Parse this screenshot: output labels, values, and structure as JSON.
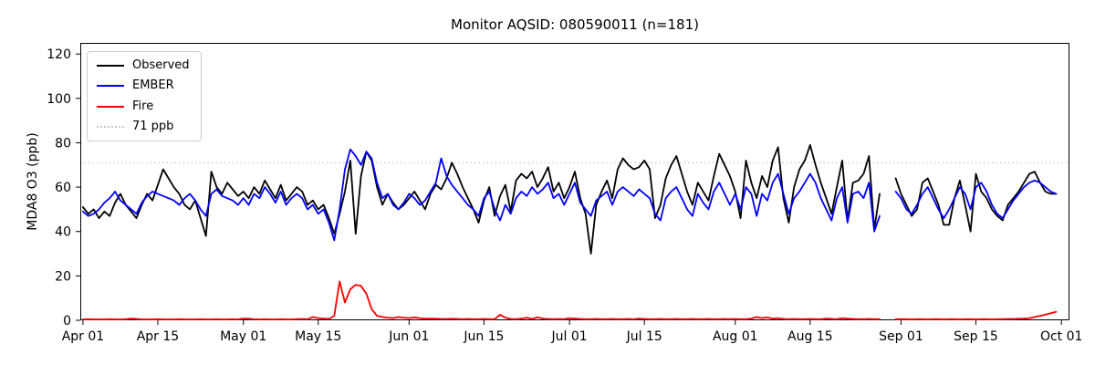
{
  "figure": {
    "title": "Monitor AQSID: 080590011 (n=181)"
  },
  "chart_data": {
    "type": "line",
    "title": "Monitor AQSID: 080590011 (n=181)",
    "xlabel": "",
    "ylabel": "MDA8 O3 (ppb)",
    "ylim": [
      0,
      125
    ],
    "yticks": [
      0,
      20,
      40,
      60,
      80,
      100,
      120
    ],
    "x_unit": "days since Apr 01",
    "x_range_days": [
      -0.5,
      184.5
    ],
    "x_tick_days": [
      0,
      14,
      30,
      44,
      61,
      75,
      91,
      105,
      122,
      136,
      153,
      167,
      183
    ],
    "x_tick_labels": [
      "Apr 01",
      "Apr 15",
      "May 01",
      "May 15",
      "Jun 01",
      "Jun 15",
      "Jul 01",
      "Jul 15",
      "Aug 01",
      "Aug 15",
      "Sep 01",
      "Sep 15",
      "Oct 01"
    ],
    "grid": false,
    "legend_position": "upper-left",
    "threshold": {
      "label": "71 ppb",
      "value": 71,
      "color": "#c8c8c8",
      "style": "dotted"
    },
    "legend": {
      "items": [
        {
          "label": "Observed",
          "color": "#000000",
          "style": "solid"
        },
        {
          "label": "EMBER",
          "color": "#0000ff",
          "style": "solid"
        },
        {
          "label": "Fire",
          "color": "#ff0000",
          "style": "solid"
        },
        {
          "label": "71 ppb",
          "color": "#c8c8c8",
          "style": "dotted"
        }
      ]
    },
    "series": [
      {
        "name": "Observed",
        "color": "#000000",
        "values": [
          51,
          48,
          50,
          46,
          49,
          47,
          53,
          57,
          52,
          49,
          46,
          52,
          57,
          54,
          61,
          68,
          64,
          60,
          57,
          52,
          50,
          54,
          46,
          38,
          67,
          60,
          57,
          62,
          59,
          56,
          58,
          55,
          60,
          57,
          63,
          59,
          55,
          61,
          54,
          57,
          60,
          58,
          52,
          54,
          50,
          52,
          46,
          39,
          48,
          58,
          72,
          39,
          65,
          76,
          72,
          60,
          52,
          57,
          53,
          50,
          52,
          55,
          58,
          54,
          50,
          57,
          61,
          59,
          64,
          71,
          66,
          60,
          55,
          50,
          44,
          54,
          60,
          47,
          56,
          61,
          49,
          63,
          66,
          64,
          67,
          60,
          64,
          69,
          58,
          62,
          55,
          60,
          67,
          55,
          48,
          30,
          52,
          58,
          63,
          55,
          68,
          73,
          70,
          68,
          69,
          72,
          68,
          46,
          52,
          64,
          70,
          74,
          66,
          58,
          52,
          62,
          58,
          54,
          65,
          75,
          70,
          65,
          58,
          46,
          72,
          62,
          55,
          65,
          60,
          72,
          78,
          55,
          44,
          60,
          68,
          72,
          79,
          70,
          62,
          55,
          48,
          60,
          72,
          45,
          62,
          63,
          66,
          74,
          41,
          57,
          null,
          null,
          64,
          57,
          52,
          47,
          50,
          62,
          64,
          58,
          52,
          43,
          43,
          55,
          63,
          52,
          40,
          66,
          58,
          55,
          50,
          47,
          45,
          52,
          55,
          58,
          62,
          66,
          67,
          62,
          58,
          57,
          57
        ]
      },
      {
        "name": "EMBER",
        "color": "#0000ff",
        "values": [
          49,
          47,
          48,
          50,
          53,
          55,
          58,
          54,
          52,
          50,
          48,
          53,
          56,
          58,
          57,
          56,
          55,
          54,
          52,
          55,
          57,
          54,
          50,
          47,
          57,
          59,
          56,
          55,
          54,
          52,
          55,
          52,
          57,
          55,
          60,
          57,
          53,
          58,
          52,
          55,
          57,
          55,
          50,
          52,
          48,
          50,
          44,
          36,
          50,
          68,
          77,
          74,
          70,
          76,
          73,
          62,
          55,
          57,
          52,
          50,
          53,
          57,
          55,
          52,
          54,
          58,
          62,
          73,
          65,
          61,
          58,
          55,
          52,
          50,
          47,
          55,
          58,
          50,
          45,
          52,
          48,
          55,
          58,
          56,
          60,
          57,
          59,
          62,
          55,
          57,
          52,
          57,
          62,
          53,
          50,
          47,
          54,
          56,
          58,
          52,
          58,
          60,
          58,
          56,
          59,
          57,
          55,
          48,
          45,
          55,
          58,
          60,
          55,
          50,
          47,
          57,
          53,
          50,
          58,
          62,
          57,
          52,
          57,
          50,
          60,
          57,
          47,
          57,
          54,
          62,
          66,
          57,
          48,
          55,
          58,
          62,
          66,
          62,
          55,
          50,
          45,
          55,
          60,
          44,
          57,
          58,
          55,
          62,
          40,
          47,
          null,
          null,
          58,
          55,
          50,
          48,
          52,
          57,
          60,
          55,
          50,
          46,
          50,
          55,
          60,
          57,
          50,
          60,
          62,
          58,
          52,
          48,
          46,
          50,
          54,
          57,
          60,
          62,
          63,
          62,
          60,
          58,
          57
        ]
      },
      {
        "name": "Fire",
        "color": "#ff0000",
        "values": [
          0.4,
          0.5,
          0.4,
          0.4,
          0.4,
          0.5,
          0.4,
          0.4,
          0.5,
          0.8,
          0.6,
          0.4,
          0.4,
          0.4,
          0.5,
          0.4,
          0.4,
          0.4,
          0.5,
          0.4,
          0.4,
          0.4,
          0.5,
          0.4,
          0.4,
          0.5,
          0.4,
          0.4,
          0.5,
          0.4,
          0.8,
          0.7,
          0.5,
          0.4,
          0.5,
          0.4,
          0.4,
          0.5,
          0.4,
          0.4,
          0.5,
          0.6,
          0.5,
          1.5,
          1.0,
          0.8,
          0.6,
          2.0,
          17.5,
          8.0,
          14.0,
          16.0,
          15.5,
          12.0,
          5.0,
          2.0,
          1.5,
          1.2,
          1.0,
          1.5,
          1.2,
          1.0,
          1.3,
          1.0,
          0.8,
          0.8,
          0.7,
          0.6,
          0.6,
          0.7,
          0.6,
          0.5,
          0.6,
          0.5,
          0.5,
          0.6,
          0.5,
          0.5,
          2.5,
          1.2,
          0.6,
          0.5,
          0.8,
          1.2,
          0.6,
          1.4,
          0.8,
          0.6,
          0.5,
          0.6,
          0.5,
          1.0,
          0.8,
          0.6,
          0.5,
          0.5,
          0.6,
          0.5,
          0.5,
          0.6,
          0.5,
          0.5,
          0.6,
          0.5,
          0.8,
          0.6,
          0.5,
          0.5,
          0.6,
          0.5,
          0.5,
          0.6,
          0.5,
          0.5,
          0.6,
          0.5,
          0.5,
          0.6,
          0.5,
          0.5,
          0.6,
          0.5,
          0.6,
          0.5,
          0.5,
          0.8,
          1.5,
          1.0,
          1.3,
          0.8,
          1.0,
          0.6,
          0.5,
          0.6,
          0.5,
          0.5,
          0.6,
          0.5,
          0.5,
          0.8,
          0.6,
          0.5,
          1.0,
          0.8,
          0.6,
          0.5,
          0.5,
          0.6,
          0.5,
          0.5,
          null,
          null,
          0.5,
          0.5,
          0.5,
          0.4,
          0.5,
          0.5,
          0.4,
          0.5,
          0.5,
          0.4,
          0.5,
          0.5,
          0.4,
          0.5,
          0.5,
          0.4,
          0.5,
          0.5,
          0.4,
          0.5,
          0.5,
          0.6,
          0.6,
          0.7,
          0.8,
          1.0,
          1.5,
          2.0,
          2.5,
          3.2,
          3.8
        ]
      }
    ]
  }
}
